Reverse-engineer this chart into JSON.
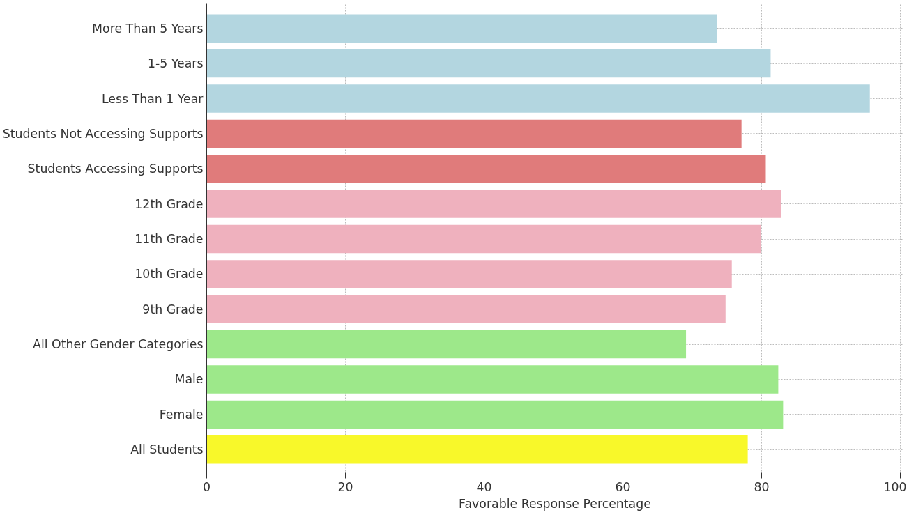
{
  "chart_data": {
    "type": "bar",
    "orientation": "horizontal",
    "xlabel": "Favorable Response Percentage",
    "categories": [
      "More Than 5 Years",
      "1-5 Years",
      "Less Than 1 Year",
      "Students Not Accessing Supports",
      "Students Accessing Supports",
      "12th Grade",
      "11th Grade",
      "10th Grade",
      "9th Grade",
      "All Other Gender Categories",
      "Male",
      "Female",
      "All Students"
    ],
    "values": [
      73.6,
      81.3,
      95.6,
      77.1,
      80.6,
      82.8,
      79.9,
      75.7,
      74.8,
      69.1,
      82.4,
      83.1,
      78.0
    ],
    "colors": [
      "#b3d6e0",
      "#b3d6e0",
      "#b3d6e0",
      "#e07b7b",
      "#e07b7b",
      "#efb1be",
      "#efb1be",
      "#efb1be",
      "#efb1be",
      "#9de88a",
      "#9de88a",
      "#9de88a",
      "#f8f82a"
    ],
    "xlim": [
      0,
      100.4
    ],
    "xticks": [
      0,
      20,
      40,
      60,
      80,
      100
    ],
    "grid": true
  }
}
